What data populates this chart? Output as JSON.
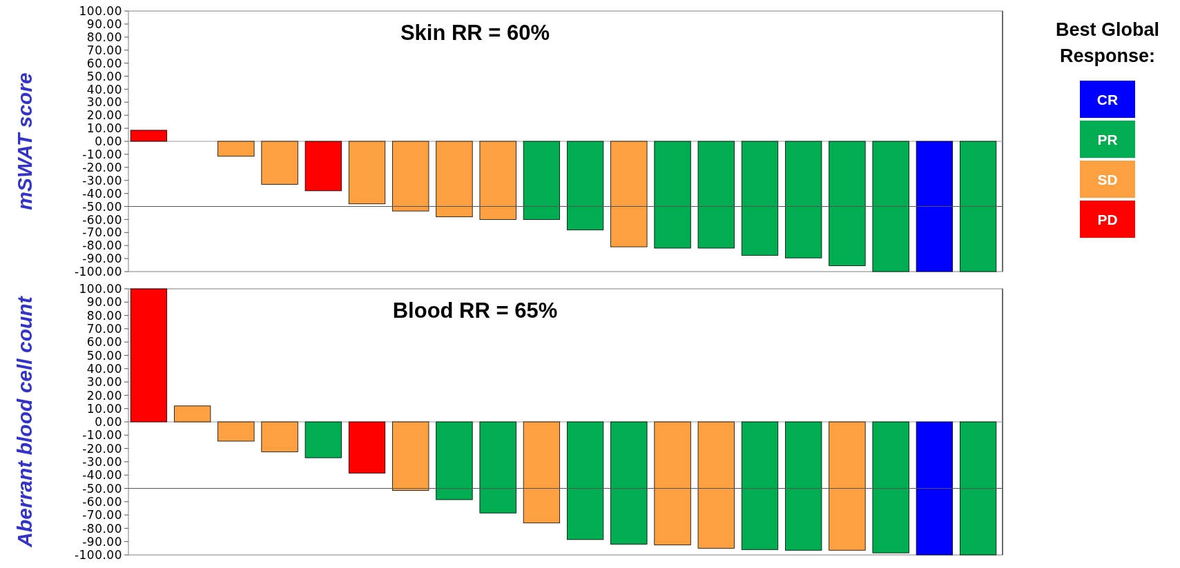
{
  "chart_data": [
    {
      "type": "bar",
      "title": "Skin RR = 60%",
      "ylabel": "mSWAT score",
      "legend_title": "Best Global Response:",
      "legend": "right",
      "stacked": true,
      "categories": [
        null,
        null,
        null,
        null,
        null,
        null,
        null,
        null,
        null,
        null,
        null,
        null,
        null,
        null,
        null,
        null,
        null,
        null,
        null,
        null
      ],
      "series": [
        {
          "name": "CR",
          "color": "#0000ff",
          "values": [
            null,
            null,
            null,
            null,
            null,
            null,
            null,
            null,
            null,
            null,
            null,
            null,
            null,
            null,
            null,
            null,
            null,
            null,
            -100,
            null
          ]
        },
        {
          "name": "PR",
          "color": "#00ad50",
          "values": [
            null,
            null,
            null,
            null,
            null,
            null,
            null,
            null,
            null,
            -60,
            -68,
            null,
            -82,
            -82,
            -87.5,
            -89.5,
            -95.5,
            -100,
            null,
            -100
          ]
        },
        {
          "name": "SD",
          "color": "#fca042",
          "values": [
            null,
            null,
            -11.5,
            -33,
            null,
            -48,
            -53.5,
            -58,
            -60,
            null,
            null,
            -81,
            null,
            null,
            null,
            null,
            null,
            null,
            null,
            null
          ]
        },
        {
          "name": "PD",
          "color": "#ff0000",
          "values": [
            8.5,
            null,
            null,
            null,
            -38,
            null,
            null,
            null,
            null,
            null,
            null,
            null,
            null,
            null,
            null,
            null,
            null,
            null,
            null,
            null
          ]
        }
      ],
      "ylim": [
        -100,
        100
      ],
      "yticks": [
        {
          "value": 100,
          "label": "100.00"
        },
        {
          "value": 90,
          "label": "90.00"
        },
        {
          "value": 80,
          "label": "80.00"
        },
        {
          "value": 70,
          "label": "70.00"
        },
        {
          "value": 60,
          "label": "60.00"
        },
        {
          "value": 50,
          "label": "50.00"
        },
        {
          "value": 40,
          "label": "40.00"
        },
        {
          "value": 30,
          "label": "30.00"
        },
        {
          "value": 20,
          "label": "20.00"
        },
        {
          "value": 10,
          "label": "10.00"
        },
        {
          "value": 0,
          "label": "0.00"
        },
        {
          "value": -10,
          "label": "-10.00"
        },
        {
          "value": -20,
          "label": "-20.00"
        },
        {
          "value": -30,
          "label": "-30.00"
        },
        {
          "value": -40,
          "label": "-40.00"
        },
        {
          "value": -50,
          "label": "-50.00"
        },
        {
          "value": -60,
          "label": "-60.00"
        },
        {
          "value": -70,
          "label": "-70.00"
        },
        {
          "value": -80,
          "label": "-80.00"
        },
        {
          "value": -90,
          "label": "-90.00"
        },
        {
          "value": -100,
          "label": "-100.00"
        }
      ],
      "ref_lines": [
        {
          "axis": "y",
          "value": -50,
          "color": "#555555"
        }
      ]
    },
    {
      "type": "bar",
      "title": "Blood RR = 65%",
      "ylabel": "Aberrant blood cell count",
      "stacked": true,
      "categories": [
        null,
        null,
        null,
        null,
        null,
        null,
        null,
        null,
        null,
        null,
        null,
        null,
        null,
        null,
        null,
        null,
        null,
        null,
        null,
        null
      ],
      "series": [
        {
          "color": "#0000ff",
          "values": [
            null,
            null,
            null,
            null,
            null,
            null,
            null,
            null,
            null,
            null,
            null,
            null,
            null,
            null,
            null,
            null,
            null,
            null,
            -100,
            null
          ]
        },
        {
          "color": "#00ad50",
          "values": [
            null,
            null,
            null,
            null,
            -27,
            null,
            null,
            -58.5,
            -68.5,
            null,
            -88.5,
            -92,
            null,
            null,
            -96,
            -96.5,
            null,
            -98.5,
            null,
            -100
          ]
        },
        {
          "color": "#fca042",
          "values": [
            null,
            12,
            -14.5,
            -22.5,
            null,
            null,
            -51.5,
            null,
            null,
            -76,
            null,
            null,
            -92.5,
            -95,
            null,
            null,
            -96.5,
            null,
            null,
            null
          ]
        },
        {
          "color": "#ff0000",
          "values": [
            100,
            null,
            null,
            null,
            null,
            -38.5,
            null,
            null,
            null,
            null,
            null,
            null,
            null,
            null,
            null,
            null,
            null,
            null,
            null,
            null
          ]
        }
      ],
      "ylim": [
        -100,
        100
      ],
      "yticks": [
        {
          "value": 100,
          "label": "100.00"
        },
        {
          "value": 90,
          "label": "90.00"
        },
        {
          "value": 80,
          "label": "80.00"
        },
        {
          "value": 70,
          "label": "70.00"
        },
        {
          "value": 60,
          "label": "60.00"
        },
        {
          "value": 50,
          "label": "50.00"
        },
        {
          "value": 40,
          "label": "40.00"
        },
        {
          "value": 30,
          "label": "30.00"
        },
        {
          "value": 20,
          "label": "20.00"
        },
        {
          "value": 10,
          "label": "10.00"
        },
        {
          "value": 0,
          "label": "0.00"
        },
        {
          "value": -10,
          "label": "-10.00"
        },
        {
          "value": -20,
          "label": "-20.00"
        },
        {
          "value": -30,
          "label": "-30.00"
        },
        {
          "value": -40,
          "label": "-40.00"
        },
        {
          "value": -50,
          "label": "-50.00"
        },
        {
          "value": -60,
          "label": "-60.00"
        },
        {
          "value": -70,
          "label": "-70.00"
        },
        {
          "value": -80,
          "label": "-80.00"
        },
        {
          "value": -90,
          "label": "-90.00"
        },
        {
          "value": -100,
          "label": "-100.00"
        }
      ],
      "ref_lines": [
        {
          "axis": "y",
          "value": -50,
          "color": "#555555"
        }
      ]
    }
  ]
}
